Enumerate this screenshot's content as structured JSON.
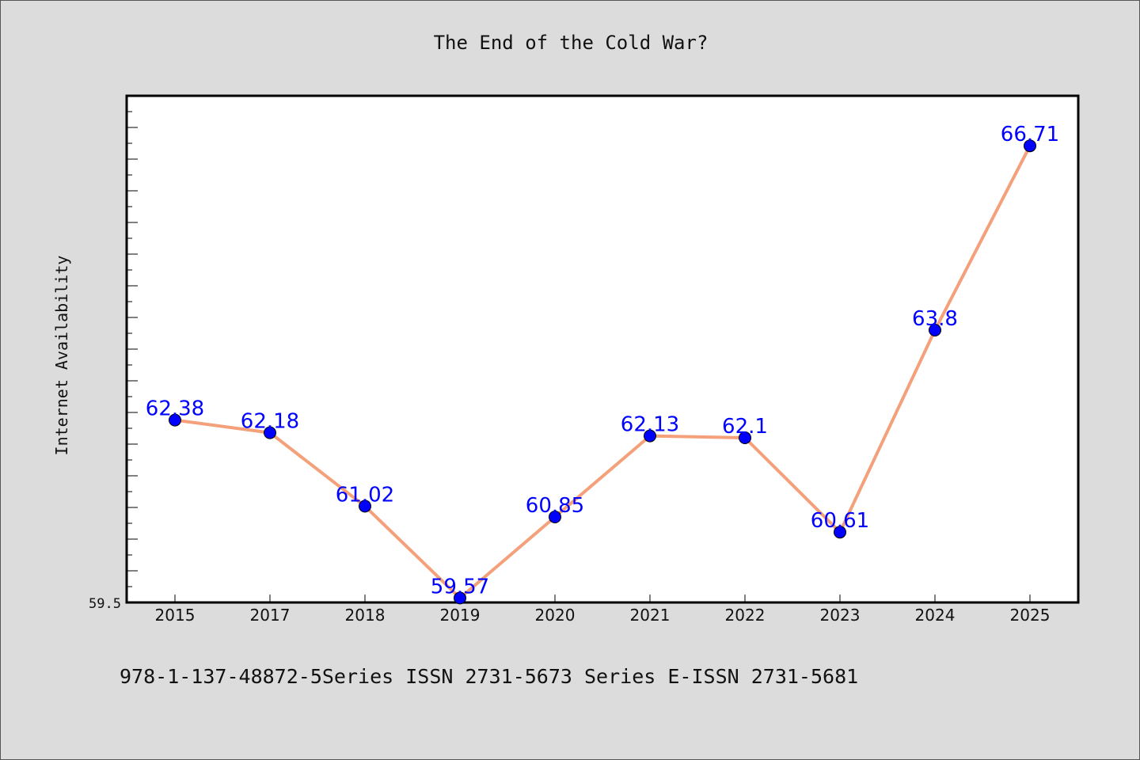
{
  "chart_data": {
    "type": "line",
    "title": "The End of the Cold War?",
    "xlabel": "",
    "ylabel": "Internet Availability",
    "categories": [
      "2015",
      "2017",
      "2018",
      "2019",
      "2020",
      "2021",
      "2022",
      "2023",
      "2024",
      "2025"
    ],
    "series": [
      {
        "values": [
          62.38,
          62.18,
          61.02,
          59.57,
          60.85,
          62.13,
          62.1,
          60.61,
          63.8,
          66.71
        ],
        "data_labels": [
          "62.38",
          "62.18",
          "61.02",
          "59.57",
          "60.85",
          "62.13",
          "62.1",
          "60.61",
          "63.8",
          "66.71"
        ]
      }
    ],
    "ylim": [
      59.5,
      67.5
    ],
    "y_tick_labels": [
      "59.5"
    ],
    "grid": false,
    "line_color": "#f4a07a",
    "marker_color": "#0000ff",
    "label_color": "#0000ff",
    "footer": "978-1-137-48872-5Series ISSN 2731-5673 Series E-ISSN 2731-5681"
  }
}
